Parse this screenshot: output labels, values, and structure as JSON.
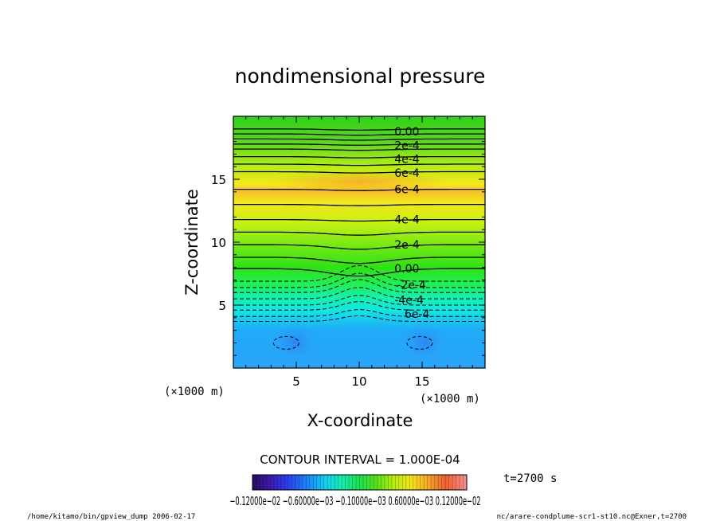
{
  "chart_data": {
    "type": "heatmap",
    "title": "nondimensional pressure",
    "xlabel": "X-coordinate",
    "ylabel": "Z-coordinate",
    "x_unit": "(×1000 m)",
    "y_unit": "(×1000 m)",
    "x_range": [
      0,
      20
    ],
    "y_range": [
      0,
      20
    ],
    "x_ticks": [
      5,
      10,
      15
    ],
    "y_ticks": [
      5,
      10,
      15
    ],
    "contour_interval_text": "CONTOUR INTERVAL = 1.000E-04",
    "time_text": "t=2700 s",
    "colorbar_labels": [
      "-0.12000e-02",
      "-0.60000e-03",
      "-0.10000e-03",
      "0.60000e-03",
      "0.12000e-02"
    ],
    "colorbar_range_text": "-0.12000e-02   -0.60000e-03   -0.10000e-03   0.60000e-03   0.12000e-02",
    "colorbar_display_text": "−0.12000e−02  −0.60000e−03  −0.10000e−03  0.60000e−03  0.12000e−02",
    "contour_labels": [
      {
        "text": "0.00",
        "x": 12.8,
        "y": 18.8
      },
      {
        "text": "2e-4",
        "x": 12.8,
        "y": 17.7
      },
      {
        "text": "4e-4",
        "x": 12.8,
        "y": 16.6
      },
      {
        "text": "6e-4",
        "x": 12.8,
        "y": 15.5
      },
      {
        "text": "6e-4",
        "x": 12.8,
        "y": 14.2
      },
      {
        "text": "4e-4",
        "x": 12.8,
        "y": 11.8
      },
      {
        "text": "2e-4",
        "x": 12.8,
        "y": 9.8
      },
      {
        "text": "0.00",
        "x": 12.8,
        "y": 7.9
      },
      {
        "text": "-2e-4",
        "x": 13.0,
        "y": 6.6
      },
      {
        "text": "-4e-4",
        "x": 12.8,
        "y": 5.4
      },
      {
        "text": "6e-4",
        "x": 13.6,
        "y": 4.3
      }
    ],
    "solid_contour_levels_z": [
      19.0,
      18.6,
      18.2,
      17.8,
      17.4,
      16.8,
      16.2,
      15.6,
      14.2,
      13.0,
      11.8,
      10.8,
      9.8,
      8.8,
      7.9
    ],
    "dashed_contour_levels_z": [
      6.9,
      6.4,
      6.0,
      5.5,
      5.0,
      4.6,
      4.1,
      3.7
    ],
    "footer_left": "/home/kitamo/bin/gpview_dump  2006-02-17",
    "footer_right": "nc/arare-condplume-scr1-st10.nc@Exner,t=2700"
  }
}
